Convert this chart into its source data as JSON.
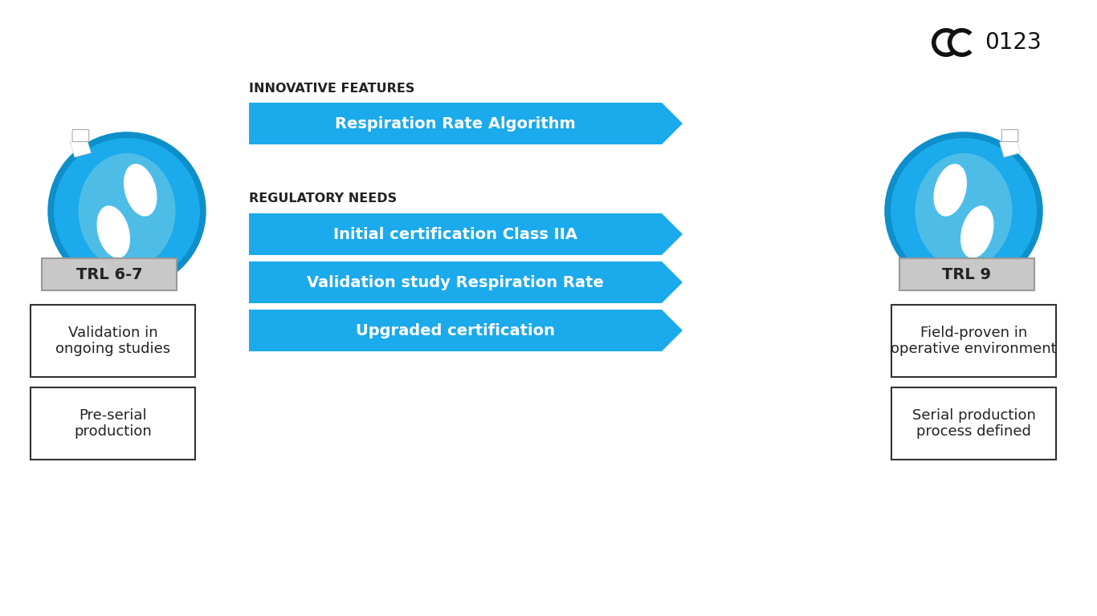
{
  "bg_color": "#ffffff",
  "arrow_color": "#1BAAEB",
  "arrow_text_color": "#ffffff",
  "section_label_color": "#222222",
  "trl_box_color": "#c8c8c8",
  "trl_box_edge": "#999999",
  "content_box_border": "#333333",
  "content_box_bg": "#ffffff",
  "content_box_text": "#222222",
  "innovative_label": "INNOVATIVE FEATURES",
  "regulatory_label": "REGULATORY NEEDS",
  "trl_left_label": "TRL 6-7",
  "trl_right_label": "TRL 9",
  "left_box1_text": "Validation in\nongoing studies",
  "left_box2_text": "Pre-serial\nproduction",
  "right_box1_text": "Field-proven in\noperative environment",
  "right_box2_text": "Serial production\nprocess defined",
  "arrow1_text": "Respiration Rate Algorithm",
  "arrow2_text": "Initial certification Class IIA",
  "arrow3_text": "Validation study Respiration Rate",
  "arrow4_text": "Upgraded certification",
  "figsize": [
    13.66,
    7.68
  ],
  "dpi": 100,
  "sensor_blue": "#1BAAEB",
  "sensor_blue_dark": "#0E8FCA",
  "sensor_blue_mid": "#4DBDE8",
  "sensor_white": "#ffffff",
  "sensor_white_off": "#e8f4fb"
}
